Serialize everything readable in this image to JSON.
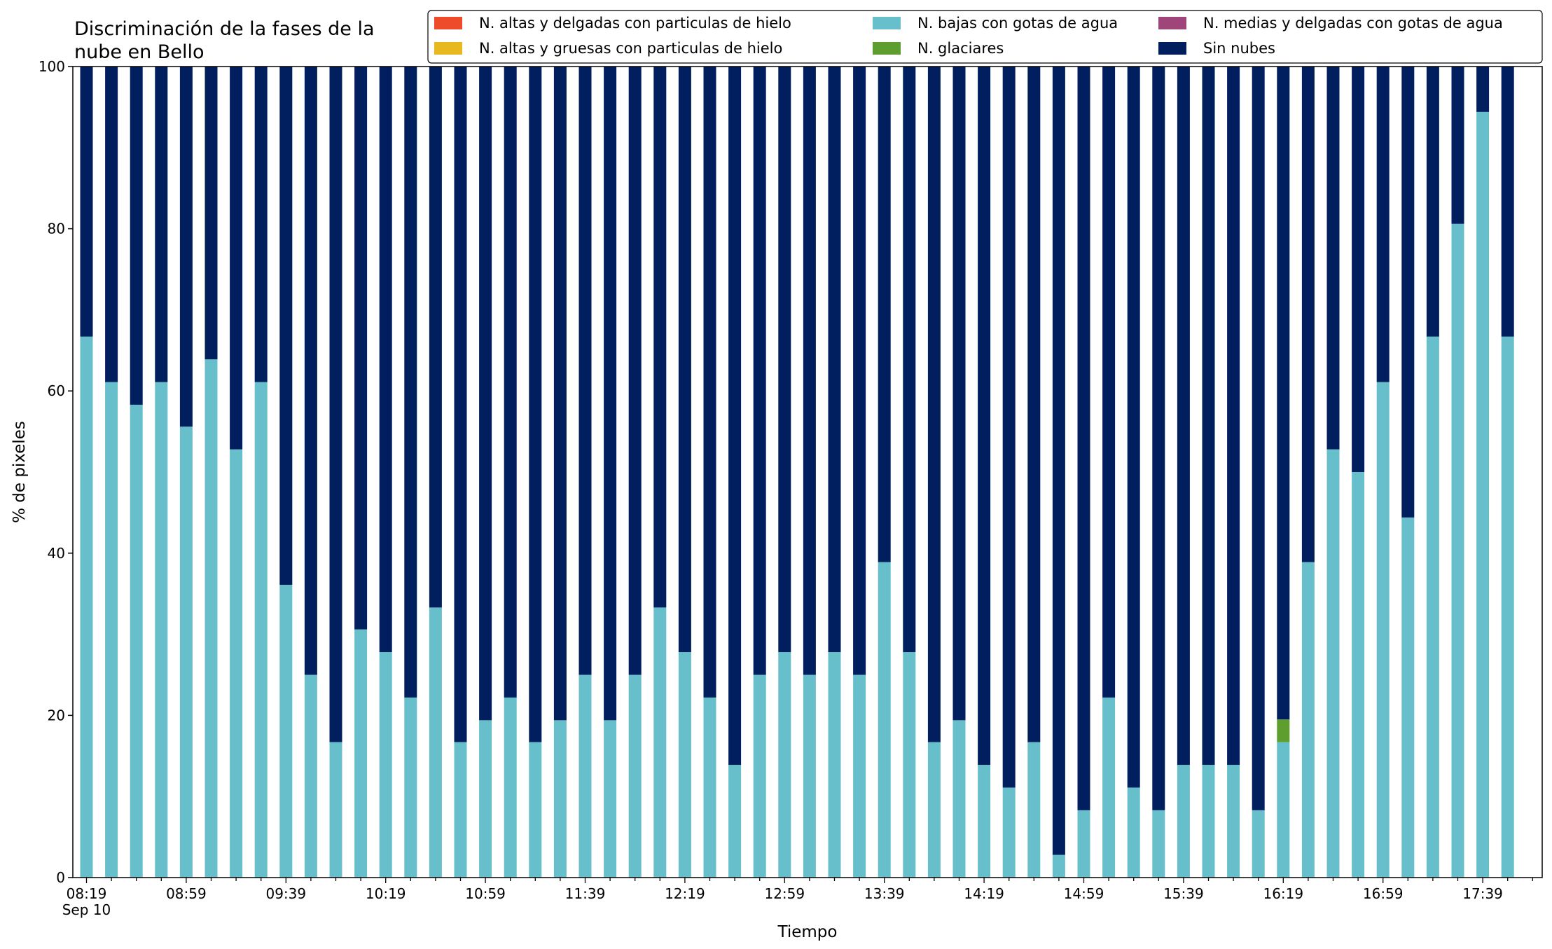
{
  "chart_data": {
    "type": "bar",
    "stacked": true,
    "title_lines": [
      "Discriminación de la fases de la",
      "nube en Bello"
    ],
    "xlabel": "Tiempo",
    "ylabel": "% de pixeles",
    "ylim": [
      0,
      100
    ],
    "yticks": [
      "0",
      "20",
      "40",
      "60",
      "80",
      "100"
    ],
    "xtick_labels": [
      "08:19",
      "08:59",
      "09:39",
      "10:19",
      "10:59",
      "11:39",
      "12:19",
      "12:59",
      "13:39",
      "14:19",
      "14:59",
      "15:39",
      "16:19",
      "16:59",
      "17:39"
    ],
    "xtick_date": "Sep 10",
    "x_start": "08:19",
    "x_step_minutes": 10,
    "legend_position": "top-right",
    "grid": false,
    "series": [
      {
        "name": "N. altas y delgadas con particulas de hielo",
        "color": "#EE4B2B",
        "values": [
          0,
          0,
          0,
          0,
          0,
          0,
          0,
          0,
          0,
          0,
          0,
          0,
          0,
          0,
          0,
          0,
          0,
          0,
          0,
          0,
          0,
          0,
          0,
          0,
          0,
          0,
          0,
          0,
          0,
          0,
          0,
          0,
          0,
          0,
          0,
          0,
          0,
          0,
          0,
          0,
          0,
          0,
          0,
          0,
          0,
          0,
          0,
          0,
          0,
          0,
          0,
          0,
          0,
          0,
          0,
          0,
          0,
          0
        ]
      },
      {
        "name": "N. altas y gruesas con particulas de hielo",
        "color": "#E8B820",
        "values": [
          0,
          0,
          0,
          0,
          0,
          0,
          0,
          0,
          0,
          0,
          0,
          0,
          0,
          0,
          0,
          0,
          0,
          0,
          0,
          0,
          0,
          0,
          0,
          0,
          0,
          0,
          0,
          0,
          0,
          0,
          0,
          0,
          0,
          0,
          0,
          0,
          0,
          0,
          0,
          0,
          0,
          0,
          0,
          0,
          0,
          0,
          0,
          0,
          0,
          0,
          0,
          0,
          0,
          0,
          0,
          0,
          0,
          0
        ]
      },
      {
        "name": "N. bajas con gotas de agua",
        "color": "#67BFCB",
        "values": [
          66.7,
          61.1,
          58.3,
          61.1,
          55.6,
          63.9,
          52.8,
          61.1,
          36.1,
          25.0,
          16.7,
          30.6,
          27.8,
          22.2,
          33.3,
          16.7,
          19.4,
          22.2,
          16.7,
          19.4,
          25.0,
          19.4,
          25.0,
          33.3,
          27.8,
          22.2,
          13.9,
          25.0,
          27.8,
          25.0,
          27.8,
          25.0,
          38.9,
          27.8,
          16.7,
          19.4,
          13.9,
          11.1,
          16.7,
          2.8,
          8.3,
          22.2,
          11.1,
          8.3,
          13.9,
          13.9,
          13.9,
          8.3,
          16.7,
          38.9,
          52.8,
          50.0,
          61.1,
          44.4,
          66.7,
          80.6,
          94.4,
          66.7
        ]
      },
      {
        "name": "N. glaciares",
        "color": "#5E9E2F",
        "values": [
          0,
          0,
          0,
          0,
          0,
          0,
          0,
          0,
          0,
          0,
          0,
          0,
          0,
          0,
          0,
          0,
          0,
          0,
          0,
          0,
          0,
          0,
          0,
          0,
          0,
          0,
          0,
          0,
          0,
          0,
          0,
          0,
          0,
          0,
          0,
          0,
          0,
          0,
          0,
          0,
          0,
          0,
          0,
          0,
          0,
          0,
          0,
          0,
          2.8,
          0,
          0,
          0,
          0,
          0,
          0,
          0,
          0,
          0
        ]
      },
      {
        "name": "N. medias y delgadas con gotas de agua",
        "color": "#A0457A",
        "values": [
          0,
          0,
          0,
          0,
          0,
          0,
          0,
          0,
          0,
          0,
          0,
          0,
          0,
          0,
          0,
          0,
          0,
          0,
          0,
          0,
          0,
          0,
          0,
          0,
          0,
          0,
          0,
          0,
          0,
          0,
          0,
          0,
          0,
          0,
          0,
          0,
          0,
          0,
          0,
          0,
          0,
          0,
          0,
          0,
          0,
          0,
          0,
          0,
          0,
          0,
          0,
          0,
          0,
          0,
          0,
          0,
          0,
          0
        ]
      },
      {
        "name": "Sin nubes",
        "color": "#011F5F",
        "values": [
          33.3,
          38.9,
          41.7,
          38.9,
          44.4,
          36.1,
          47.2,
          38.9,
          63.9,
          75.0,
          83.3,
          69.4,
          72.2,
          77.8,
          66.7,
          83.3,
          80.6,
          77.8,
          83.3,
          80.6,
          75.0,
          80.6,
          75.0,
          66.7,
          72.2,
          77.8,
          86.1,
          75.0,
          72.2,
          75.0,
          72.2,
          75.0,
          61.1,
          72.2,
          83.3,
          80.6,
          86.1,
          88.9,
          83.3,
          97.2,
          91.7,
          77.8,
          88.9,
          91.7,
          86.1,
          86.1,
          86.1,
          91.7,
          80.5,
          61.1,
          47.2,
          50.0,
          38.9,
          55.6,
          33.3,
          19.4,
          5.6,
          33.3
        ]
      }
    ]
  }
}
